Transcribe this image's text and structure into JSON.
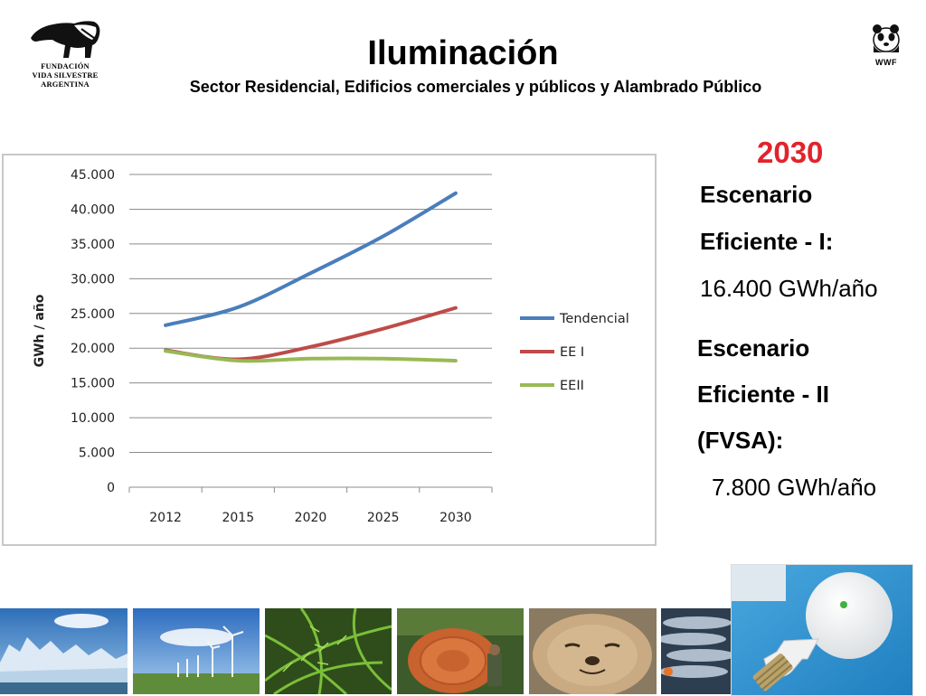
{
  "logos": {
    "fvsa": {
      "lines": [
        "FUNDACIÓN",
        "VIDA SILVESTRE",
        "ARGENTINA"
      ],
      "icon": "anteater-icon"
    },
    "wwf": {
      "text": "WWF",
      "icon": "panda-icon"
    }
  },
  "header": {
    "title": "Iluminación",
    "subtitle": "Sector Residencial, Edificios comerciales y públicos y Alambrado Público"
  },
  "chart_data": {
    "type": "line",
    "categories": [
      "2012",
      "2015",
      "2020",
      "2025",
      "2030"
    ],
    "series": [
      {
        "name": "Tendencial",
        "color": "#4a7ebb",
        "values": [
          23300,
          25900,
          30800,
          36100,
          42300
        ]
      },
      {
        "name": "EE I",
        "color": "#be4b48",
        "values": [
          19700,
          18400,
          20200,
          22800,
          25800
        ]
      },
      {
        "name": "EEII",
        "color": "#98b954",
        "values": [
          19600,
          18200,
          18500,
          18500,
          18200
        ]
      }
    ],
    "ylabel": "GWh / año",
    "ylim": [
      0,
      45000
    ],
    "yticks": [
      "0",
      "5.000",
      "10.000",
      "15.000",
      "20.000",
      "25.000",
      "30.000",
      "35.000",
      "40.000",
      "45.000"
    ],
    "grid": true,
    "legend_position": "right"
  },
  "summary": {
    "year": "2030",
    "scenario1": {
      "line1": "Escenario",
      "line2": "Eficiente - I:",
      "value": "16.400 GWh/año"
    },
    "scenario2": {
      "line1": "Escenario",
      "line2": "Eficiente - II",
      "line3": "(FVSA):",
      "value": "7.800 GWh/año"
    }
  },
  "photos": [
    "glacier-photo",
    "wind-farm-photo",
    "fern-photo",
    "tree-trunk-photo",
    "seal-photo",
    "fish-photo",
    "led-bulb-photo"
  ]
}
